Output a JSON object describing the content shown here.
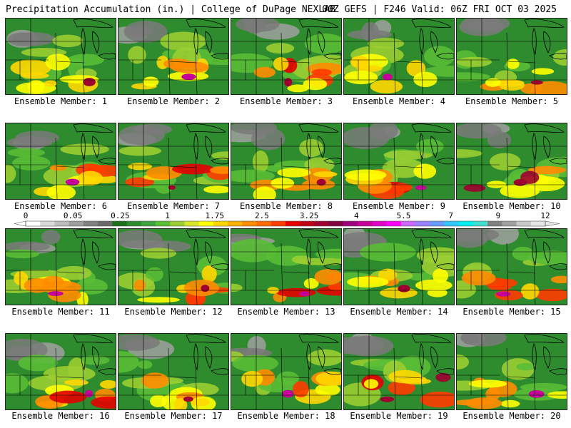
{
  "header": {
    "left": "Precipitation Accumulation (in.) | College of DuPage NEXLAB",
    "right": "00Z GEFS | F246 Valid: 06Z FRI OCT 03 2025"
  },
  "colorbar": {
    "labels": [
      "0",
      "0.05",
      "0.25",
      "1",
      "1.75",
      "2.5",
      "3.25",
      "4",
      "5.5",
      "7",
      "9",
      "12"
    ],
    "colors": [
      "#ffffff",
      "#d9d9d9",
      "#bdbdbd",
      "#9e9e9e",
      "#808080",
      "#6a6a6a",
      "#1e6e1e",
      "#2e8b2e",
      "#3fa23f",
      "#59bd36",
      "#9acd32",
      "#d8e629",
      "#ffff00",
      "#ffd700",
      "#ffb000",
      "#ff8c00",
      "#ff6a00",
      "#ff3b00",
      "#e60000",
      "#c00018",
      "#a00030",
      "#800040",
      "#a0007a",
      "#c8009a",
      "#e000c8",
      "#ff00ff",
      "#cc66ff",
      "#9a7fff",
      "#6a9aff",
      "#30c8ff",
      "#00f0f0",
      "#40e0d0",
      "#808080",
      "#a0a0a0",
      "#c8c8c8",
      "#e6e6e6"
    ]
  },
  "panels": [
    {
      "member": "Ensemble Member: 1"
    },
    {
      "member": "Ensemble Member: 2"
    },
    {
      "member": "Ensemble Member: 3"
    },
    {
      "member": "Ensemble Member: 4"
    },
    {
      "member": "Ensemble Member: 5"
    },
    {
      "member": "Ensemble Member: 6"
    },
    {
      "member": "Ensemble Member: 7"
    },
    {
      "member": "Ensemble Member: 8"
    },
    {
      "member": "Ensemble Member: 9"
    },
    {
      "member": "Ensemble Member: 10"
    },
    {
      "member": "Ensemble Member: 11"
    },
    {
      "member": "Ensemble Member: 12"
    },
    {
      "member": "Ensemble Member: 13"
    },
    {
      "member": "Ensemble Member: 14"
    },
    {
      "member": "Ensemble Member: 15"
    },
    {
      "member": "Ensemble Member: 16"
    },
    {
      "member": "Ensemble Member: 17"
    },
    {
      "member": "Ensemble Member: 18"
    },
    {
      "member": "Ensemble Member: 19"
    },
    {
      "member": "Ensemble Member: 20"
    }
  ]
}
